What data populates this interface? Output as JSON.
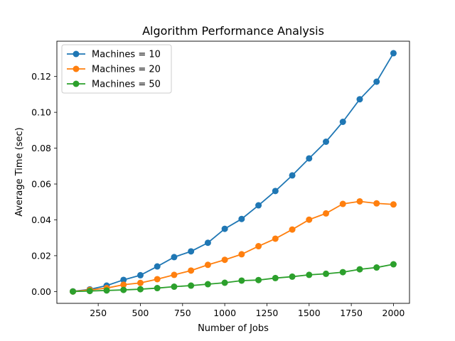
{
  "chart_data": {
    "type": "line",
    "title": "Algorithm Performance Analysis",
    "xlabel": "Number of Jobs",
    "ylabel": "Average Time (sec)",
    "xlim": [
      5,
      2095
    ],
    "ylim": [
      -0.0066,
      0.1397
    ],
    "xticks": [
      250,
      500,
      750,
      1000,
      1250,
      1500,
      1750,
      2000
    ],
    "yticks": [
      0.0,
      0.02,
      0.04,
      0.06,
      0.08,
      0.1,
      0.12
    ],
    "grid": false,
    "legend_position": "top-left",
    "x": [
      100,
      200,
      300,
      400,
      500,
      600,
      700,
      800,
      900,
      1000,
      1100,
      1200,
      1300,
      1400,
      1500,
      1600,
      1700,
      1800,
      1900,
      2000
    ],
    "series": [
      {
        "name": "Machines = 10",
        "color": "#1f77b4",
        "values": [
          0.0001,
          0.0012,
          0.0033,
          0.0065,
          0.0091,
          0.014,
          0.0192,
          0.0224,
          0.0272,
          0.035,
          0.0405,
          0.0481,
          0.0561,
          0.0648,
          0.0743,
          0.0836,
          0.0947,
          0.1073,
          0.1171,
          0.133
        ]
      },
      {
        "name": "Machines = 20",
        "color": "#ff7f0e",
        "values": [
          0.0,
          0.0009,
          0.0019,
          0.0038,
          0.0048,
          0.0069,
          0.0093,
          0.0117,
          0.0149,
          0.0177,
          0.0208,
          0.0253,
          0.0295,
          0.0346,
          0.0401,
          0.0436,
          0.0489,
          0.0503,
          0.0492,
          0.0486
        ]
      },
      {
        "name": "Machines = 50",
        "color": "#2ca02c",
        "values": [
          0.0,
          0.0003,
          0.0006,
          0.0009,
          0.0013,
          0.0019,
          0.0027,
          0.0033,
          0.0041,
          0.0049,
          0.0061,
          0.0064,
          0.0075,
          0.0083,
          0.0093,
          0.0099,
          0.0108,
          0.0124,
          0.0134,
          0.0152
        ]
      }
    ]
  }
}
